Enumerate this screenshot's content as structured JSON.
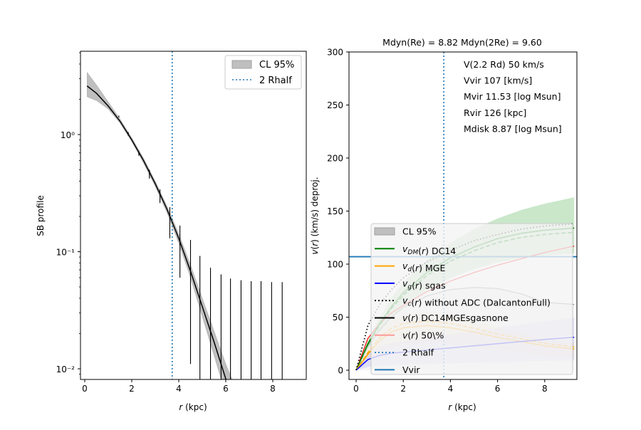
{
  "chart_data": [
    {
      "type": "line",
      "panel": "left",
      "title": "",
      "xlabel": "r (kpc)",
      "ylabel": "SB profile",
      "yscale": "log",
      "xlim": [
        -0.2,
        9.4
      ],
      "ylim": [
        0.0081,
        5.1
      ],
      "xticks": [
        0,
        2,
        4,
        6,
        8
      ],
      "xtick_labels": [
        "0",
        "2",
        "4",
        "6",
        "8"
      ],
      "yticks": [
        0.01,
        0.1,
        1
      ],
      "ytick_labels": [
        "10⁻²",
        "10⁻¹",
        "10⁰"
      ],
      "legend": {
        "placement": "top-right",
        "entries": [
          {
            "label": "CL 95%",
            "kind": "patch",
            "color": "#bfbfbf"
          },
          {
            "label": "2 Rhalf",
            "kind": "dotted",
            "color": "#1f77b4"
          }
        ]
      },
      "vline_2rhalf": 3.72,
      "model_curve": {
        "x": [
          0.1,
          0.5,
          1.0,
          1.5,
          2.0,
          2.5,
          3.0,
          3.5,
          4.0,
          4.5,
          5.0,
          5.5,
          6.0,
          6.3
        ],
        "y": [
          2.6,
          2.25,
          1.75,
          1.3,
          0.9,
          0.6,
          0.38,
          0.23,
          0.13,
          0.068,
          0.034,
          0.017,
          0.0082,
          0.0056
        ]
      },
      "band_lower": [
        2.1,
        1.95,
        1.65,
        1.25,
        0.87,
        0.57,
        0.36,
        0.215,
        0.118,
        0.06,
        0.028,
        0.013,
        0.006,
        0.004
      ],
      "band_upper": [
        3.4,
        2.65,
        1.9,
        1.36,
        0.94,
        0.63,
        0.4,
        0.245,
        0.142,
        0.077,
        0.04,
        0.021,
        0.011,
        0.0078
      ],
      "data_points": {
        "x": [
          1.45,
          1.85,
          2.3,
          2.75,
          3.2,
          3.62,
          4.05,
          4.5,
          4.9,
          5.35,
          5.8,
          6.2,
          6.65,
          7.08,
          7.5,
          7.95,
          8.4
        ],
        "y_err_top": [
          1.45,
          1.05,
          0.72,
          0.5,
          0.34,
          0.24,
          0.167,
          0.126,
          0.092,
          0.073,
          0.064,
          0.059,
          0.057,
          0.056,
          0.056,
          0.055,
          0.055
        ],
        "y_err_bottom": [
          1.4,
          0.98,
          0.66,
          0.42,
          0.26,
          0.13,
          0.06,
          0.011,
          0.0081,
          0.0081,
          0.0081,
          0.0081,
          0.0081,
          0.0081,
          0.0081,
          0.0081,
          0.0081
        ]
      }
    },
    {
      "type": "line",
      "panel": "right",
      "title": "Mdyn(Re) = 8.82  Mdyn(2Re) = 9.60",
      "xlabel": "r (kpc)",
      "ylabel": "v(r) (km/s) deproj.",
      "xlim": [
        -0.2,
        9.4
      ],
      "ylim": [
        -9,
        300
      ],
      "xticks": [
        0,
        2,
        4,
        6,
        8
      ],
      "xtick_labels": [
        "0",
        "2",
        "4",
        "6",
        "8"
      ],
      "yticks": [
        0,
        50,
        100,
        150,
        200,
        250,
        300
      ],
      "ytick_labels": [
        "0",
        "50",
        "100",
        "150",
        "200",
        "250",
        "300"
      ],
      "annotations": [
        "V(2.2 Rd) 50 km/s",
        "Vvir 107 [km/s]",
        "Mvir 11.53 [log Msun]",
        "Rvir 126 [kpc]",
        "Mdisk 8.87 [log Msun]"
      ],
      "vline_2rhalf": 3.72,
      "hline_vvir": 107,
      "legend": {
        "placement": "lower-center",
        "entries": [
          {
            "label": "CL 95%",
            "kind": "patch",
            "color": "#bfbfbf"
          },
          {
            "label": "v_DM(r) DC14",
            "kind": "line",
            "color": "#008000"
          },
          {
            "label": "v_d(r) MGE",
            "kind": "line",
            "color": "#ffa500"
          },
          {
            "label": "v_g(r) sgas",
            "kind": "line",
            "color": "#0000ff"
          },
          {
            "label": "v_c(r) without ADC (DalcantonFull)",
            "kind": "dotted",
            "color": "#000000"
          },
          {
            "label": "v(r) DC14MGEsgasnone",
            "kind": "line",
            "color": "#000000"
          },
          {
            "label": "v(r) 50\\%",
            "kind": "line",
            "color": "#ff9999"
          },
          {
            "label": "2 Rhalf",
            "kind": "dotted",
            "color": "#1f77b4"
          },
          {
            "label": "Vvir",
            "kind": "line",
            "color": "#1f77b4"
          }
        ]
      },
      "x": [
        0,
        0.5,
        1,
        1.5,
        2,
        3,
        4,
        5,
        6,
        7,
        8,
        9.25
      ],
      "series": [
        {
          "name": "v_DM(r) DC14",
          "color": "#008000",
          "values": [
            0,
            25,
            44,
            60,
            73,
            92,
            106,
            116,
            124,
            129,
            132,
            134
          ]
        },
        {
          "name": "v_DM upper CL",
          "color": "#008000",
          "values": [
            0,
            28,
            50,
            68,
            83,
            104,
            120,
            133,
            143,
            151,
            157,
            163
          ]
        },
        {
          "name": "v_d(r) MGE",
          "color": "#ffa500",
          "values": [
            0,
            15,
            28,
            36,
            40,
            42,
            40,
            36,
            31,
            27,
            23,
            20
          ]
        },
        {
          "name": "v_g(r) sgas",
          "color": "#0000ff",
          "values": [
            0,
            10,
            14,
            16,
            17,
            19,
            21,
            23,
            25,
            27,
            29,
            31
          ]
        },
        {
          "name": "v_c(r) without ADC (DalcantonFull)",
          "color": "#000000",
          "values": [
            0,
            42,
            62,
            76,
            87,
            102,
            113,
            122,
            128,
            133,
            136,
            138
          ]
        },
        {
          "name": "v(r) 50%",
          "color": "#ff9999",
          "values": [
            0,
            30,
            44,
            54,
            61,
            74,
            84,
            92,
            99,
            105,
            111,
            117
          ]
        },
        {
          "name": "v(r) DC14MGEsgasnone",
          "color": "#999999",
          "values": [
            0,
            24,
            38,
            50,
            59,
            70,
            76,
            78,
            77,
            72,
            64,
            62
          ]
        }
      ]
    }
  ]
}
